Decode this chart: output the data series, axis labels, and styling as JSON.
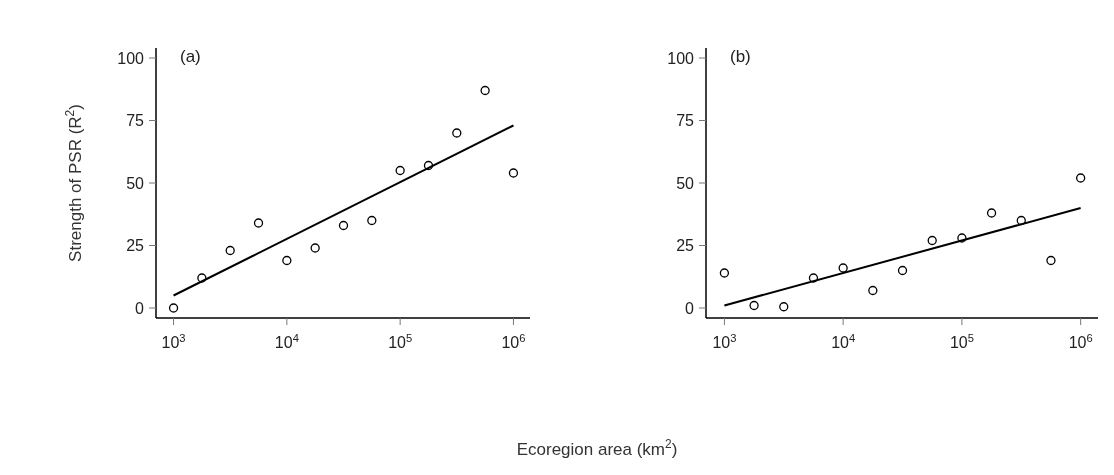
{
  "chart_data": [
    {
      "type": "scatter",
      "title": "(a)",
      "ylabel": "Strength of PSR (R$^{2}$)",
      "xlabel": "Ecoregion area (km$^{2}$)",
      "log": "x",
      "xlim": [
        700,
        1400000
      ],
      "ylim": [
        -4,
        104
      ],
      "xticks": [
        {
          "value": 1000,
          "label": "10$^{3}$"
        },
        {
          "value": 10000,
          "label": "10$^{4}$"
        },
        {
          "value": 100000,
          "label": "10$^{5}$"
        },
        {
          "value": 1000000,
          "label": "10$^{6}$"
        }
      ],
      "yticks": [
        0,
        25,
        50,
        75,
        100
      ],
      "series": [
        {
          "color": "#000000",
          "marker": "circle",
          "x": [
            1000,
            1778,
            3162,
            5623,
            10000,
            17783,
            31623,
            56234,
            100000,
            177828,
            316228,
            562341,
            1000000
          ],
          "values": [
            0,
            12,
            23,
            34,
            19,
            24,
            33,
            35,
            55,
            57,
            70,
            87,
            54
          ]
        },
        {
          "type": "line",
          "marker": "none",
          "color": "#000000",
          "x": [
            1000,
            1000000
          ],
          "values": [
            5,
            73
          ]
        }
      ]
    },
    {
      "type": "scatter",
      "title": "(b)",
      "log": "x",
      "xlim": [
        700,
        1400000
      ],
      "ylim": [
        -4,
        104
      ],
      "xticks": [
        {
          "value": 1000,
          "label": "10$^{3}$"
        },
        {
          "value": 10000,
          "label": "10$^{4}$"
        },
        {
          "value": 100000,
          "label": "10$^{5}$"
        },
        {
          "value": 1000000,
          "label": "10$^{6}$"
        }
      ],
      "yticks": [
        0,
        25,
        50,
        75,
        100
      ],
      "series": [
        {
          "color": "#000000",
          "marker": "circle",
          "x": [
            1000,
            1778,
            3162,
            5623,
            10000,
            17783,
            31623,
            56234,
            100000,
            177828,
            316228,
            562341,
            1000000
          ],
          "values": [
            14,
            1,
            0.5,
            12,
            16,
            7,
            15,
            27,
            28,
            38,
            35,
            19,
            52
          ]
        },
        {
          "type": "line",
          "marker": "none",
          "color": "#000000",
          "x": [
            1000,
            1000000
          ],
          "values": [
            1,
            40
          ]
        }
      ]
    }
  ]
}
